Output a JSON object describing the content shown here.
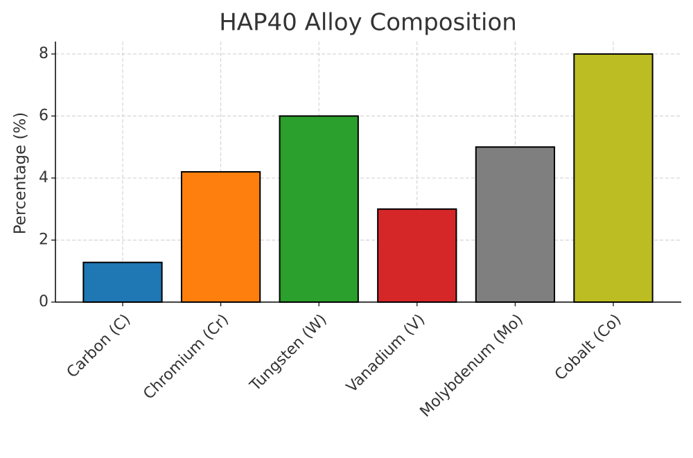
{
  "chart_data": {
    "type": "bar",
    "title": "HAP40 Alloy Composition",
    "y_label": "Percentage (%)",
    "categories": [
      "Carbon (C)",
      "Chromium (Cr)",
      "Tungsten (W)",
      "Vanadium (V)",
      "Molybdenum (Mo)",
      "Cobalt (Co)"
    ],
    "values": [
      1.28,
      4.2,
      6.0,
      3.0,
      5.0,
      8.0
    ],
    "colors": [
      "#1f77b4",
      "#ff7f0e",
      "#2ca02c",
      "#d62728",
      "#7f7f7f",
      "#bcbd22"
    ],
    "ylim": [
      0,
      8.4
    ],
    "yticks": [
      0,
      2,
      4,
      6,
      8
    ],
    "grid": true
  }
}
